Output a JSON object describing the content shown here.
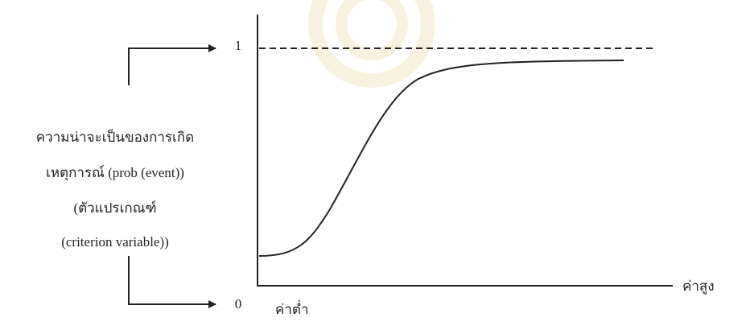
{
  "diagram": {
    "y_top_label": "1",
    "y_bottom_label": "0",
    "y_axis_label": [
      "ความน่าจะเป็นของการเกิด",
      "เหตุการณ์ (prob (event))",
      "(ตัวแปรเกณฑ์",
      "(criterion variable))"
    ],
    "x_low_label": "ค่าต่ำ",
    "x_high_label": "ค่าสูง"
  }
}
